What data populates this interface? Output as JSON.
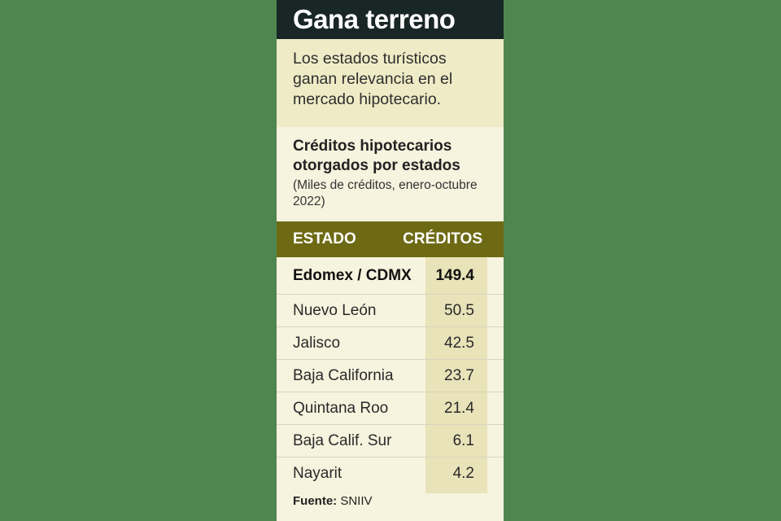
{
  "title": "Gana terreno",
  "subtitle": "Los estados turísticos ganan relevancia en el mercado hipotecario.",
  "chart_data": {
    "type": "table",
    "title": "Créditos hipotecarios otorgados por estados",
    "subtitle": "(Miles de créditos, enero-octubre 2022)",
    "columns": [
      "ESTADO",
      "CRÉDITOS"
    ],
    "rows": [
      {
        "estado": "Edomex / CDMX",
        "creditos": "149.4"
      },
      {
        "estado": "Nuevo León",
        "creditos": "50.5"
      },
      {
        "estado": "Jalisco",
        "creditos": "42.5"
      },
      {
        "estado": "Baja California",
        "creditos": "23.7"
      },
      {
        "estado": "Quintana Roo",
        "creditos": "21.4"
      },
      {
        "estado": "Baja Calif. Sur",
        "creditos": "6.1"
      },
      {
        "estado": "Nayarit",
        "creditos": "4.2"
      }
    ]
  },
  "source": {
    "label": "Fuente:",
    "value": " SNIIV"
  },
  "colors": {
    "background": "#4f8650",
    "title_bar": "#182625",
    "header_bar": "#6e6a14",
    "card": "#f6f3de",
    "value_column": "#e8e3b9"
  }
}
